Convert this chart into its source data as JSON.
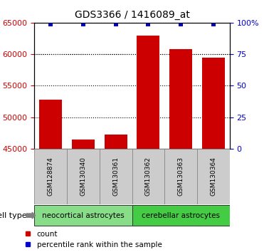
{
  "title": "GDS3366 / 1416089_at",
  "samples": [
    "GSM128874",
    "GSM130340",
    "GSM130361",
    "GSM130362",
    "GSM130363",
    "GSM130364"
  ],
  "counts": [
    52800,
    46500,
    47200,
    63000,
    60800,
    59400
  ],
  "percentiles": [
    99,
    99,
    99,
    99,
    99,
    99
  ],
  "ylim_left": [
    45000,
    65000
  ],
  "ylim_right": [
    0,
    100
  ],
  "yticks_left": [
    45000,
    50000,
    55000,
    60000,
    65000
  ],
  "yticks_right": [
    0,
    25,
    50,
    75,
    100
  ],
  "bar_color": "#cc0000",
  "dot_color": "#0000cc",
  "groups": [
    {
      "label": "neocortical astrocytes",
      "indices": [
        0,
        1,
        2
      ],
      "color": "#88dd88"
    },
    {
      "label": "cerebellar astrocytes",
      "indices": [
        3,
        4,
        5
      ],
      "color": "#44cc44"
    }
  ],
  "cell_type_label": "cell type",
  "legend_count_label": "count",
  "legend_pct_label": "percentile rank within the sample",
  "tick_label_color_left": "#cc0000",
  "tick_label_color_right": "#0000cc",
  "bg_color": "#ffffff",
  "sample_bg": "#cccccc",
  "grid_color": "#000000"
}
